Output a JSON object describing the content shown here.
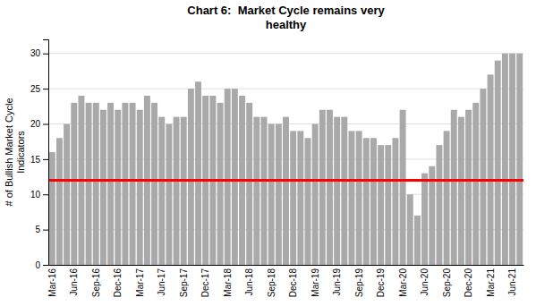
{
  "chart_data": {
    "type": "bar",
    "title": "Chart 6:  Market Cycle remains very\nhealthy",
    "y_label": "# of Bullish Market Cycle\nIndicators",
    "categories": [
      "Mar-16",
      null,
      null,
      "Jun-16",
      null,
      null,
      "Sep-16",
      null,
      null,
      "Dec-16",
      null,
      null,
      "Mar-17",
      null,
      null,
      "Jun-17",
      null,
      null,
      "Sep-17",
      null,
      null,
      "Dec-17",
      null,
      null,
      "Mar-18",
      null,
      null,
      "Jun-18",
      null,
      null,
      "Sep-18",
      null,
      null,
      "Dec-18",
      null,
      null,
      "Mar-19",
      null,
      null,
      "Jun-19",
      null,
      null,
      "Sep-19",
      null,
      null,
      "Dec-19",
      null,
      null,
      "Mar-20",
      null,
      null,
      "Jun-20",
      null,
      null,
      "Sep-20",
      null,
      null,
      "Dec-20",
      null,
      null,
      "Mar-21",
      null,
      null,
      "Jun-21",
      null
    ],
    "values": [
      16,
      18,
      20,
      23,
      24,
      23,
      23,
      22,
      23,
      22,
      23,
      23,
      22,
      24,
      23,
      21,
      20,
      21,
      21,
      25,
      26,
      24,
      24,
      23,
      25,
      25,
      24,
      23,
      21,
      21,
      20,
      20,
      21,
      19,
      19,
      18,
      20,
      22,
      22,
      21,
      21,
      19,
      19,
      18,
      18,
      17,
      17,
      18,
      22,
      10,
      7,
      13,
      14,
      17,
      19,
      22,
      21,
      22,
      23,
      25,
      27,
      29,
      30,
      30,
      30
    ],
    "color": "#A9A9A9",
    "reference_line": {
      "value": 12,
      "color": "#FF0000"
    },
    "ylim": [
      0,
      32
    ],
    "yticks": [
      0,
      5,
      10,
      15,
      20,
      25,
      30
    ],
    "grid": true
  }
}
